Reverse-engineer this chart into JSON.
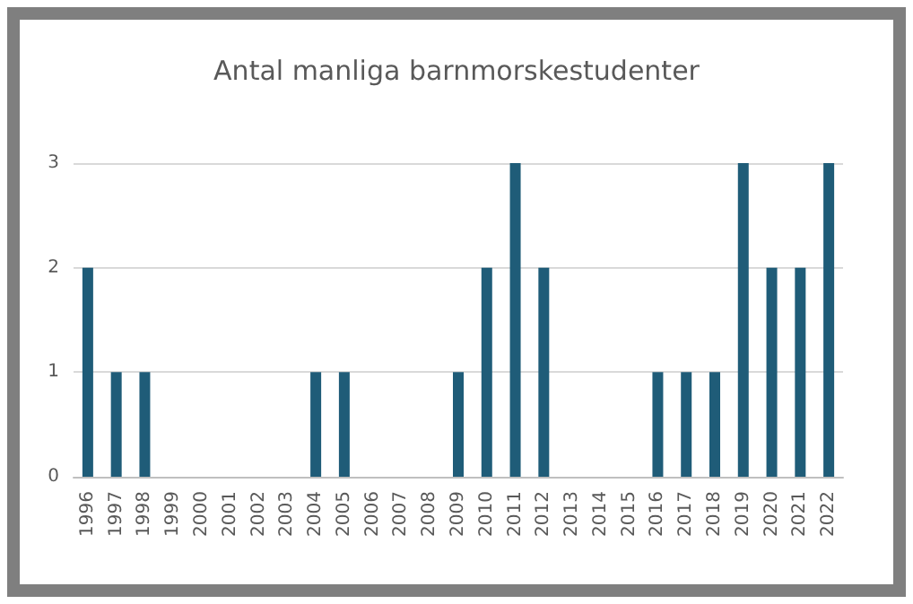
{
  "chart_data": {
    "type": "bar",
    "title": "Antal manliga barnmorskestudenter",
    "categories": [
      "1996",
      "1997",
      "1998",
      "1999",
      "2000",
      "2001",
      "2002",
      "2003",
      "2004",
      "2005",
      "2006",
      "2007",
      "2008",
      "2009",
      "2010",
      "2011",
      "2012",
      "2013",
      "2014",
      "2015",
      "2016",
      "2017",
      "2018",
      "2019",
      "2020",
      "2021",
      "2022"
    ],
    "values": [
      2,
      1,
      1,
      0,
      0,
      0,
      0,
      0,
      1,
      1,
      0,
      0,
      0,
      1,
      2,
      3,
      2,
      0,
      0,
      0,
      1,
      1,
      1,
      3,
      2,
      2,
      3
    ],
    "color": "#1f5c78",
    "ylim": [
      0,
      3
    ],
    "yticks": [
      0,
      1,
      2,
      3
    ],
    "grid": "y"
  }
}
